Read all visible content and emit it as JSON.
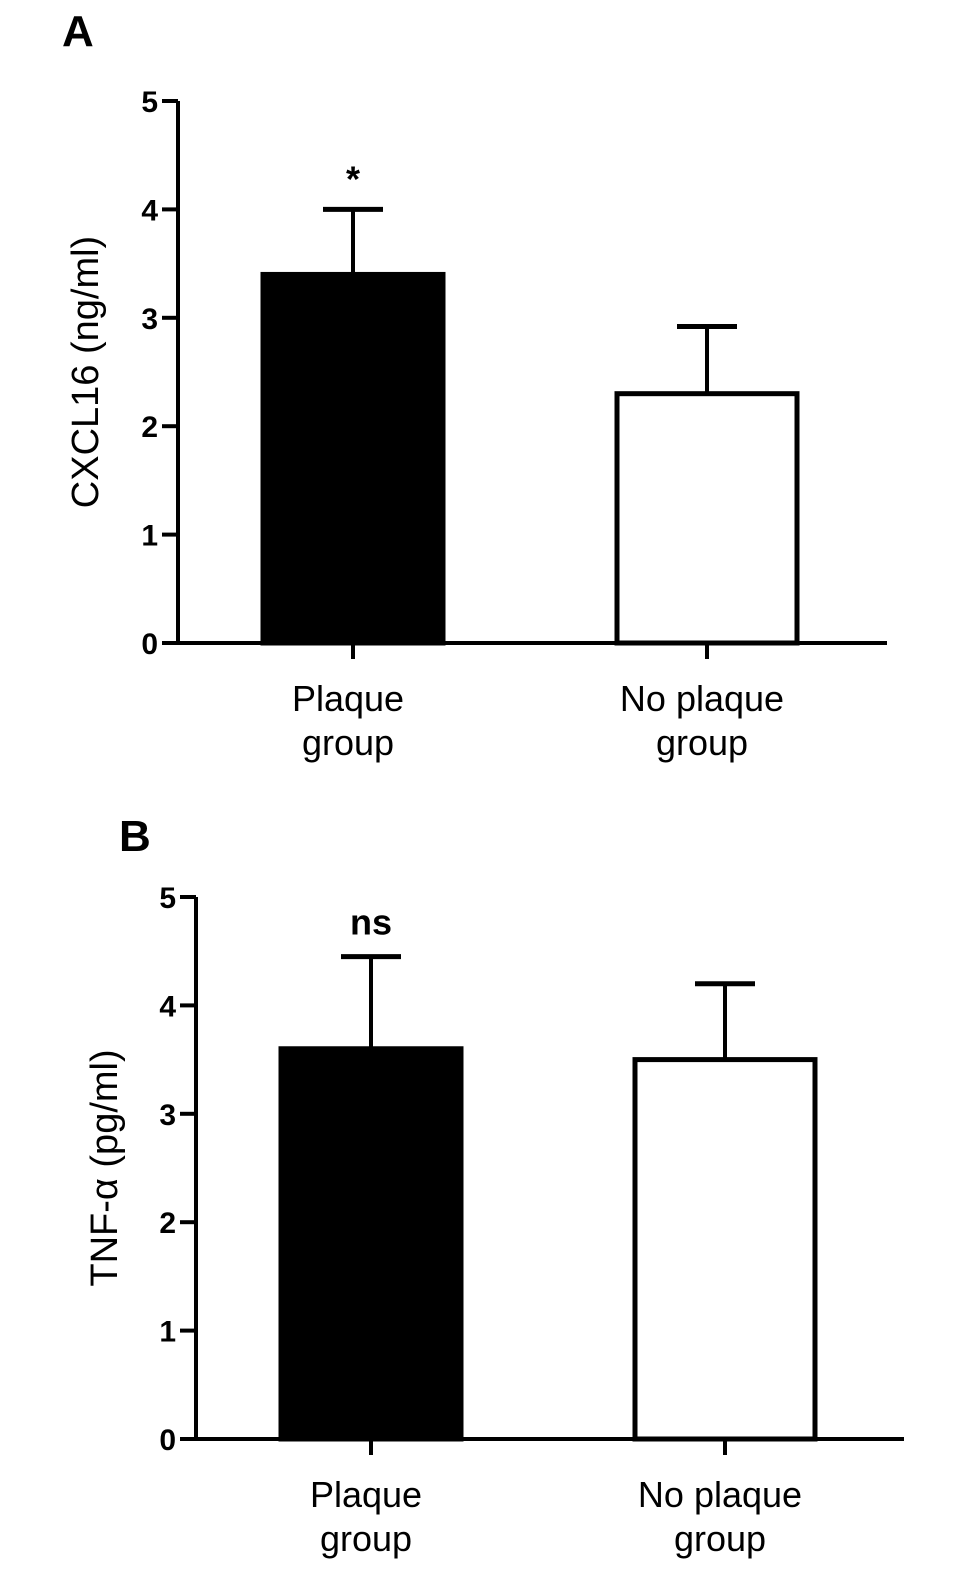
{
  "chart_data": [
    {
      "type": "bar",
      "panel": "A",
      "ylabel": "CXCL16 (ng/ml)",
      "ylim": [
        0,
        5
      ],
      "yticks": [
        0,
        1,
        2,
        3,
        4,
        5
      ],
      "categories": [
        {
          "line1": "Plaque",
          "line2": "group"
        },
        {
          "line1": "No plaque",
          "line2": "group"
        }
      ],
      "values": [
        3.4,
        2.3
      ],
      "errors": [
        0.6,
        0.62
      ],
      "fill": [
        "#000000",
        "#ffffff"
      ],
      "annotations": [
        "*",
        ""
      ]
    },
    {
      "type": "bar",
      "panel": "B",
      "ylabel": "TNF-α (pg/ml)",
      "ylim": [
        0,
        5
      ],
      "yticks": [
        0,
        1,
        2,
        3,
        4,
        5
      ],
      "categories": [
        {
          "line1": "Plaque",
          "line2": "group"
        },
        {
          "line1": "No plaque",
          "line2": "group"
        }
      ],
      "values": [
        3.6,
        3.5
      ],
      "errors": [
        0.85,
        0.7
      ],
      "fill": [
        "#000000",
        "#ffffff"
      ],
      "annotations": [
        "ns",
        ""
      ]
    }
  ]
}
